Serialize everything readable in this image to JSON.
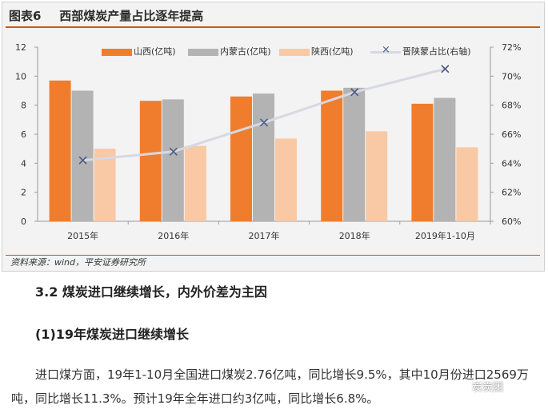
{
  "figure": {
    "number": "图表6",
    "title": "西部煤炭产量占比逐年提高",
    "source": "资料来源：wind，平安证券研究所"
  },
  "chart_data": {
    "type": "bar",
    "categories": [
      "2015年",
      "2016年",
      "2017年",
      "2018年",
      "2019年1-10月"
    ],
    "series": [
      {
        "name": "山西(亿吨)",
        "type": "bar",
        "color": "#f07d2e",
        "values": [
          9.7,
          8.3,
          8.6,
          9.0,
          8.1
        ]
      },
      {
        "name": "内蒙古(亿吨)",
        "type": "bar",
        "color": "#b3b3b3",
        "values": [
          9.0,
          8.4,
          8.8,
          9.2,
          8.5
        ]
      },
      {
        "name": "陕西(亿吨)",
        "type": "bar",
        "color": "#f8c9a4",
        "values": [
          5.0,
          5.2,
          5.7,
          6.2,
          5.1
        ]
      },
      {
        "name": "晋陕蒙占比(右轴)",
        "type": "line",
        "axis": "right",
        "color": "#d5d9e3",
        "marker_color": "#4c5a86",
        "values": [
          64.2,
          64.8,
          66.8,
          68.9,
          70.5
        ]
      }
    ],
    "y_left": {
      "range": [
        0,
        12
      ],
      "ticks": [
        "0",
        "2",
        "4",
        "6",
        "8",
        "10",
        "12"
      ]
    },
    "y_right": {
      "range": [
        60,
        72
      ],
      "ticks": [
        "60%",
        "62%",
        "64%",
        "66%",
        "68%",
        "70%",
        "72%"
      ]
    },
    "legend_position": "top"
  },
  "article": {
    "section_heading": "3.2 煤炭进口继续增长，内外价差为主因",
    "sub_heading": "(1)19年煤炭进口继续增长",
    "paragraph": "进口煤方面，19年1-10月全国进口煤炭2.76亿吨，同比增长9.5%，其中10月份进口2569万吨，同比增长11.3%。预计19年全年进口约3亿吨，同比增长6.8%。",
    "watermark": "炭炭团"
  }
}
